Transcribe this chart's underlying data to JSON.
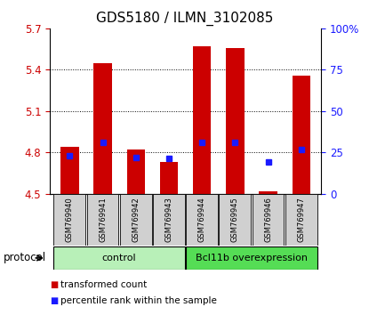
{
  "title": "GDS5180 / ILMN_3102085",
  "samples": [
    "GSM769940",
    "GSM769941",
    "GSM769942",
    "GSM769943",
    "GSM769944",
    "GSM769945",
    "GSM769946",
    "GSM769947"
  ],
  "red_bar_heights": [
    4.84,
    5.45,
    4.82,
    4.73,
    5.57,
    5.56,
    4.515,
    5.36
  ],
  "blue_marker_y": [
    4.775,
    4.875,
    4.765,
    4.755,
    4.875,
    4.875,
    4.73,
    4.82
  ],
  "ymin": 4.5,
  "ymax": 5.7,
  "yticks_left": [
    4.5,
    4.8,
    5.1,
    5.4,
    5.7
  ],
  "yticks_right": [
    0,
    25,
    50,
    75,
    100
  ],
  "groups": [
    {
      "label": "control",
      "samples": [
        0,
        1,
        2,
        3
      ],
      "color": "#b8f0b8"
    },
    {
      "label": "Bcl11b overexpression",
      "samples": [
        4,
        5,
        6,
        7
      ],
      "color": "#55dd55"
    }
  ],
  "protocol_label": "protocol",
  "legend_items": [
    {
      "label": "transformed count",
      "color": "#cc0000"
    },
    {
      "label": "percentile rank within the sample",
      "color": "#0000cc"
    }
  ],
  "bar_color": "#cc0000",
  "marker_color": "#1a1aff",
  "bar_width": 0.55,
  "bg_color": "#ffffff",
  "tick_color_left": "#cc0000",
  "tick_color_right": "#1a1aff",
  "sample_box_color": "#d0d0d0",
  "grid_yticks": [
    4.8,
    5.1,
    5.4
  ],
  "title_fontsize": 11,
  "tick_fontsize": 8.5,
  "label_fontsize": 8
}
